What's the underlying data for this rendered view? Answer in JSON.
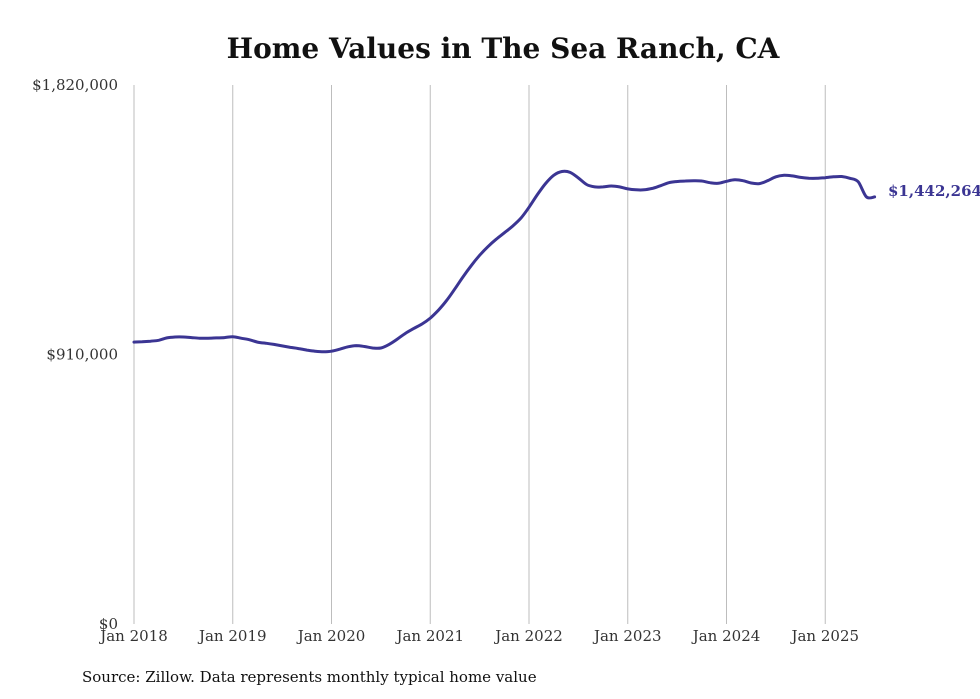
{
  "chart_data": {
    "type": "line",
    "title": "Home Values in The Sea Ranch, CA",
    "source_note": "Source: Zillow. Data represents monthly typical home value",
    "ylim": [
      0,
      1820000
    ],
    "y_ticks": [
      {
        "value": 0,
        "label": "$0"
      },
      {
        "value": 910000,
        "label": "$910,000"
      },
      {
        "value": 1820000,
        "label": "$1,820,000"
      }
    ],
    "x_ticks": [
      "Jan 2018",
      "Jan 2019",
      "Jan 2020",
      "Jan 2021",
      "Jan 2022",
      "Jan 2023",
      "Jan 2024",
      "Jan 2025"
    ],
    "grid": "vertical",
    "line_color": "#3b3593",
    "end_label": "$1,442,264",
    "series": [
      {
        "x": [
          "2018-01",
          "2018-02",
          "2018-03",
          "2018-04",
          "2018-05",
          "2018-06",
          "2018-07",
          "2018-08",
          "2018-09",
          "2018-10",
          "2018-11",
          "2018-12",
          "2019-01",
          "2019-02",
          "2019-03",
          "2019-04",
          "2019-05",
          "2019-06",
          "2019-07",
          "2019-08",
          "2019-09",
          "2019-10",
          "2019-11",
          "2019-12",
          "2020-01",
          "2020-02",
          "2020-03",
          "2020-04",
          "2020-05",
          "2020-06",
          "2020-07",
          "2020-08",
          "2020-09",
          "2020-10",
          "2020-11",
          "2020-12",
          "2021-01",
          "2021-02",
          "2021-03",
          "2021-04",
          "2021-05",
          "2021-06",
          "2021-07",
          "2021-08",
          "2021-09",
          "2021-10",
          "2021-11",
          "2021-12",
          "2022-01",
          "2022-02",
          "2022-03",
          "2022-04",
          "2022-05",
          "2022-06",
          "2022-07",
          "2022-08",
          "2022-09",
          "2022-10",
          "2022-11",
          "2022-12",
          "2023-01",
          "2023-02",
          "2023-03",
          "2023-04",
          "2023-05",
          "2023-06",
          "2023-07",
          "2023-08",
          "2023-09",
          "2023-10",
          "2023-11",
          "2023-12",
          "2024-01",
          "2024-02",
          "2024-03",
          "2024-04",
          "2024-05",
          "2024-06",
          "2024-07",
          "2024-08",
          "2024-09",
          "2024-10",
          "2024-11",
          "2024-12",
          "2025-01",
          "2025-02",
          "2025-03",
          "2025-04",
          "2025-05",
          "2025-06",
          "2025-07"
        ],
        "values": [
          952000,
          953000,
          955000,
          958000,
          966000,
          969000,
          969000,
          967000,
          965000,
          965000,
          966000,
          967000,
          970000,
          965000,
          960000,
          952000,
          948000,
          944000,
          939000,
          934000,
          930000,
          925000,
          921000,
          919000,
          921000,
          928000,
          936000,
          940000,
          937000,
          932000,
          932000,
          944000,
          962000,
          982000,
          998000,
          1013000,
          1033000,
          1060000,
          1093000,
          1132000,
          1173000,
          1211000,
          1245000,
          1274000,
          1299000,
          1321000,
          1343000,
          1370000,
          1407000,
          1449000,
          1487000,
          1515000,
          1528000,
          1525000,
          1506000,
          1484000,
          1476000,
          1476000,
          1479000,
          1476000,
          1469000,
          1466000,
          1466000,
          1471000,
          1480000,
          1490000,
          1494000,
          1496000,
          1497000,
          1496000,
          1490000,
          1488000,
          1495000,
          1500000,
          1497000,
          1489000,
          1487000,
          1497000,
          1510000,
          1515000,
          1513000,
          1508000,
          1505000,
          1505000,
          1507000,
          1510000,
          1511000,
          1505000,
          1493000,
          1442264,
          1442264
        ]
      }
    ]
  }
}
